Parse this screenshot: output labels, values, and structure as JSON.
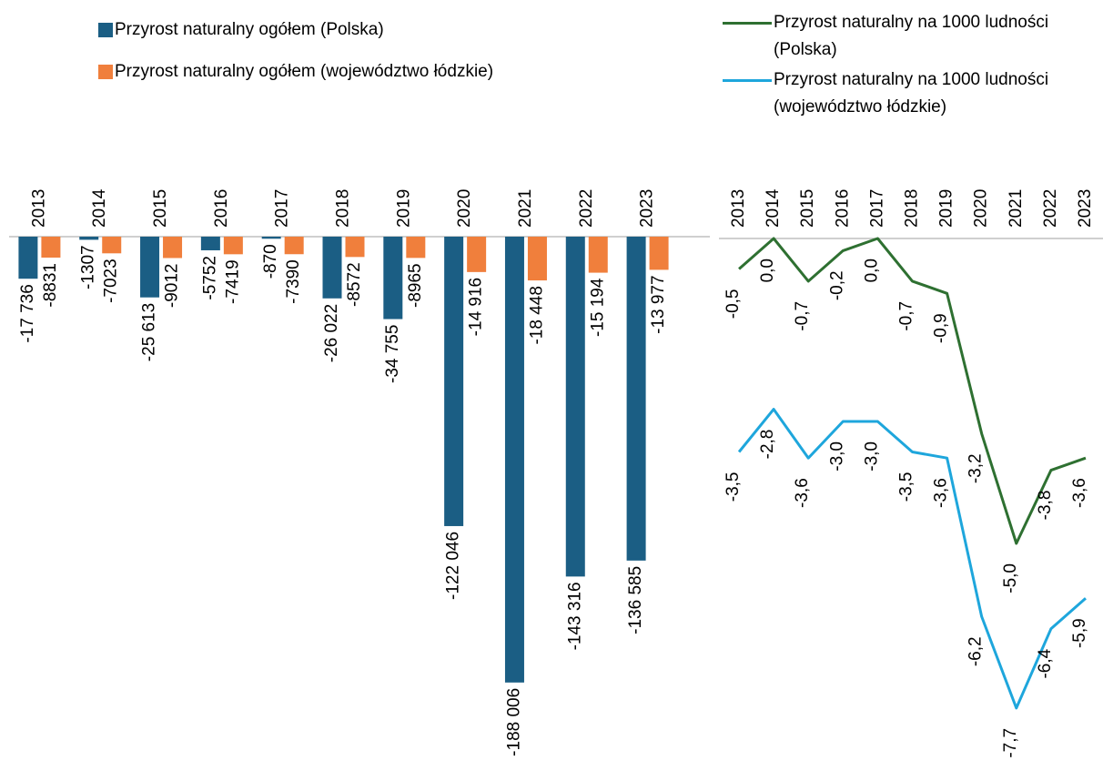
{
  "chart_data": [
    {
      "type": "bar",
      "categories": [
        "2013",
        "2014",
        "2015",
        "2016",
        "2017",
        "2018",
        "2019",
        "2020",
        "2021",
        "2022",
        "2023"
      ],
      "series": [
        {
          "name": "Przyrost naturalny ogółem (Polska)",
          "color": "#1b5e84",
          "values": [
            -17736,
            -1307,
            -25613,
            -5752,
            -870,
            -26022,
            -34755,
            -122046,
            -188006,
            -143316,
            -136585
          ],
          "value_labels": [
            "-17 736",
            "-1307",
            "-25 613",
            "-5752",
            "-870",
            "-26 022",
            "-34 755",
            "-122 046",
            "-188 006",
            "-143 316",
            "-136 585"
          ]
        },
        {
          "name": "Przyrost naturalny ogółem (województwo łódzkie)",
          "color": "#f07f3c",
          "values": [
            -8831,
            -7023,
            -9012,
            -7419,
            -7390,
            -8572,
            -8965,
            -14916,
            -18448,
            -15194,
            -13977
          ],
          "value_labels": [
            "-8831",
            "-7023",
            "-9012",
            "-7419",
            "-7390",
            "-8572",
            "-8965",
            "-14 916",
            "-18 448",
            "-15 194",
            "-13 977"
          ]
        }
      ],
      "ylim": [
        -190000,
        0
      ]
    },
    {
      "type": "line",
      "categories": [
        "2013",
        "2014",
        "2015",
        "2016",
        "2017",
        "2018",
        "2019",
        "2020",
        "2021",
        "2022",
        "2023"
      ],
      "series": [
        {
          "name": "Przyrost naturalny na 1000 ludności  (Polska)",
          "color": "#2e7031",
          "values": [
            -0.5,
            0.0,
            -0.7,
            -0.2,
            0.0,
            -0.7,
            -0.9,
            -3.2,
            -5.0,
            -3.8,
            -3.6
          ],
          "value_labels": [
            "-0,5",
            "0,0",
            "-0,7",
            "-0,2",
            "0,0",
            "-0,7",
            "-0,9",
            "-3,2",
            "-5,0",
            "-3,8",
            "-3,6"
          ]
        },
        {
          "name": "Przyrost naturalny na 1000 ludności (województwo łódzkie)",
          "color": "#1ea6dc",
          "values": [
            -3.5,
            -2.8,
            -3.6,
            -3.0,
            -3.0,
            -3.5,
            -3.6,
            -6.2,
            -7.7,
            -6.4,
            -5.9
          ],
          "value_labels": [
            "-3,5",
            "-2,8",
            "-3,6",
            "-3,0",
            "-3,0",
            "-3,5",
            "-3,6",
            "-6,2",
            "-7,7",
            "-6,4",
            "-5,9"
          ]
        }
      ],
      "ylim": [
        -8,
        0
      ]
    }
  ]
}
